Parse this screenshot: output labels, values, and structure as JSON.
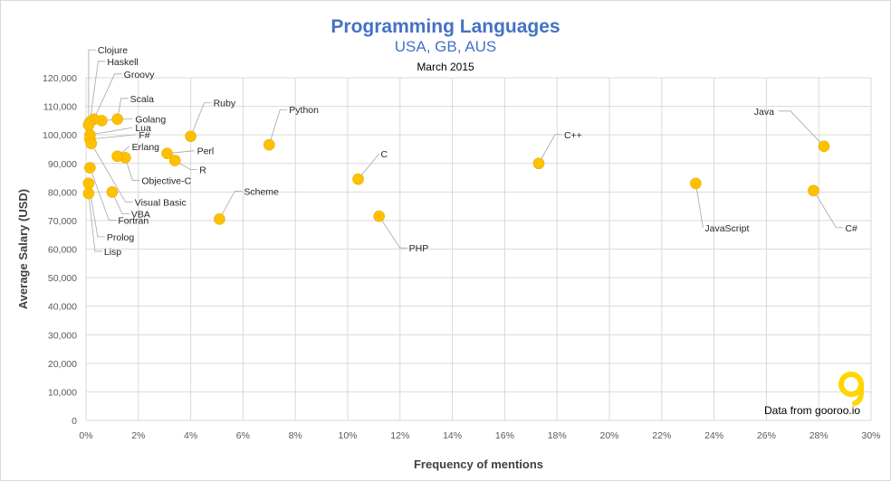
{
  "chart_data": {
    "type": "scatter",
    "title": "Programming Languages",
    "subtitle": "USA, GB, AUS",
    "date": "March 2015",
    "xlabel": "Frequency of mentions",
    "ylabel": "Average Salary (USD)",
    "xlim": [
      0,
      30
    ],
    "ylim": [
      0,
      120000
    ],
    "x_ticks": [
      "0%",
      "2%",
      "4%",
      "6%",
      "8%",
      "10%",
      "12%",
      "14%",
      "16%",
      "18%",
      "20%",
      "22%",
      "24%",
      "26%",
      "28%",
      "30%"
    ],
    "y_ticks": [
      "0",
      "10,000",
      "20,000",
      "30,000",
      "40,000",
      "50,000",
      "60,000",
      "70,000",
      "80,000",
      "90,000",
      "100,000",
      "110,000",
      "120,000"
    ],
    "grid": true,
    "marker_color": "#ffc000",
    "points": [
      {
        "label": "Java",
        "x": 28.2,
        "y": 96000
      },
      {
        "label": "C#",
        "x": 27.8,
        "y": 80500
      },
      {
        "label": "JavaScript",
        "x": 23.3,
        "y": 83000
      },
      {
        "label": "C++",
        "x": 17.3,
        "y": 90000
      },
      {
        "label": "PHP",
        "x": 11.2,
        "y": 71500
      },
      {
        "label": "C",
        "x": 10.4,
        "y": 84500
      },
      {
        "label": "Python",
        "x": 7.0,
        "y": 96500
      },
      {
        "label": "Scheme",
        "x": 5.1,
        "y": 70500
      },
      {
        "label": "Ruby",
        "x": 4.0,
        "y": 99500
      },
      {
        "label": "Perl",
        "x": 3.1,
        "y": 93500
      },
      {
        "label": "R",
        "x": 3.4,
        "y": 91000
      },
      {
        "label": "Objective-C",
        "x": 1.5,
        "y": 92000
      },
      {
        "label": "Erlang",
        "x": 1.2,
        "y": 92500
      },
      {
        "label": "VBA",
        "x": 1.0,
        "y": 80000
      },
      {
        "label": "Scala",
        "x": 1.2,
        "y": 105500
      },
      {
        "label": "Golang",
        "x": 0.6,
        "y": 105000
      },
      {
        "label": "Groovy",
        "x": 0.3,
        "y": 105500
      },
      {
        "label": "Haskell",
        "x": 0.15,
        "y": 104500
      },
      {
        "label": "Clojure",
        "x": 0.1,
        "y": 103500
      },
      {
        "label": "Lua",
        "x": 0.15,
        "y": 100000
      },
      {
        "label": "F#",
        "x": 0.15,
        "y": 98500
      },
      {
        "label": "Visual Basic",
        "x": 0.2,
        "y": 97000
      },
      {
        "label": "Fortran",
        "x": 0.15,
        "y": 88500
      },
      {
        "label": "Prolog",
        "x": 0.1,
        "y": 83000
      },
      {
        "label": "Lisp",
        "x": 0.1,
        "y": 79500
      }
    ]
  },
  "credit": "Data from gooroo.io",
  "logo_text": "g"
}
